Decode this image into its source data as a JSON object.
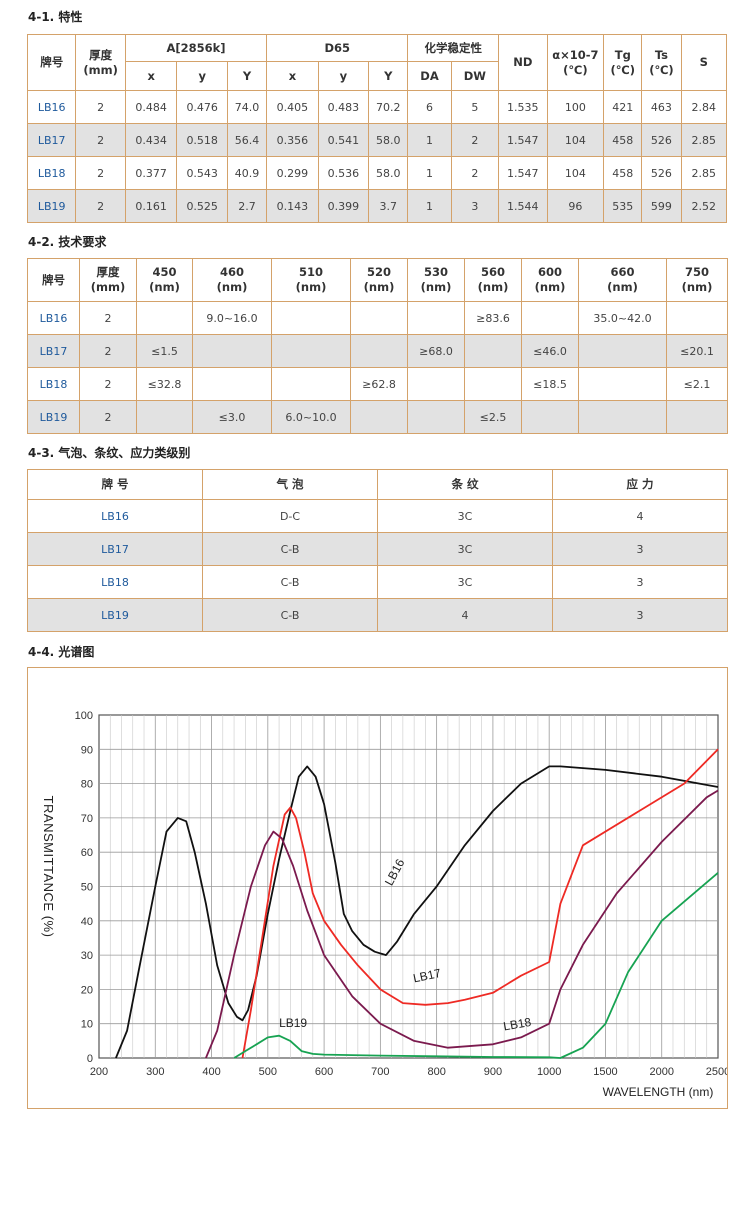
{
  "sections": {
    "s1": "4-1. 特性",
    "s2": "4-2. 技术要求",
    "s3": "4-3. 气泡、条纹、应力类级别",
    "s4": "4-4. 光谱图"
  },
  "table1": {
    "h": {
      "brand": "牌号",
      "thick": "厚度",
      "thick_unit": "(mm)",
      "a2856": "A[2856k]",
      "d65": "D65",
      "chem": "化学稳定性",
      "nd": "ND",
      "alpha": "α×10-7",
      "alpha_unit": "(℃)",
      "tg": "Tg",
      "tg_unit": "(℃)",
      "ts": "Ts",
      "ts_unit": "(℃)",
      "s": "S",
      "x": "x",
      "y": "y",
      "Y": "Y",
      "x2": "x",
      "y2": "y",
      "Y2": "Y",
      "da": "DA",
      "dw": "DW"
    },
    "rows": [
      [
        "LB16",
        "2",
        "0.484",
        "0.476",
        "74.0",
        "0.405",
        "0.483",
        "70.2",
        "6",
        "5",
        "1.535",
        "100",
        "421",
        "463",
        "2.84"
      ],
      [
        "LB17",
        "2",
        "0.434",
        "0.518",
        "56.4",
        "0.356",
        "0.541",
        "58.0",
        "1",
        "2",
        "1.547",
        "104",
        "458",
        "526",
        "2.85"
      ],
      [
        "LB18",
        "2",
        "0.377",
        "0.543",
        "40.9",
        "0.299",
        "0.536",
        "58.0",
        "1",
        "2",
        "1.547",
        "104",
        "458",
        "526",
        "2.85"
      ],
      [
        "LB19",
        "2",
        "0.161",
        "0.525",
        "2.7",
        "0.143",
        "0.399",
        "3.7",
        "1",
        "3",
        "1.544",
        "96",
        "535",
        "599",
        "2.52"
      ]
    ]
  },
  "table2": {
    "h": {
      "brand": "牌号",
      "thick": "厚度",
      "thick_unit": "(mm)",
      "unit": "(nm)",
      "w450": "450",
      "w460": "460",
      "w510": "510",
      "w520": "520",
      "w530": "530",
      "w560": "560",
      "w600": "600",
      "w660": "660",
      "w750": "750"
    },
    "rows": [
      [
        "LB16",
        "2",
        "",
        "9.0~16.0",
        "",
        "",
        "",
        "≥83.6",
        "",
        "35.0~42.0",
        ""
      ],
      [
        "LB17",
        "2",
        "≤1.5",
        "",
        "",
        "",
        "≥68.0",
        "",
        "≤46.0",
        "",
        "≤20.1"
      ],
      [
        "LB18",
        "2",
        "≤32.8",
        "",
        "",
        "≥62.8",
        "",
        "",
        "≤18.5",
        "",
        "≤2.1"
      ],
      [
        "LB19",
        "2",
        "",
        "≤3.0",
        "6.0~10.0",
        "",
        "",
        "≤2.5",
        "",
        "",
        ""
      ]
    ]
  },
  "table3": {
    "h": {
      "brand": "牌 号",
      "bubble": "气 泡",
      "stripe": "条 纹",
      "stress": "应 力"
    },
    "rows": [
      [
        "LB16",
        "D-C",
        "3C",
        "4"
      ],
      [
        "LB17",
        "C-B",
        "3C",
        "3"
      ],
      [
        "LB18",
        "C-B",
        "3C",
        "3"
      ],
      [
        "LB19",
        "C-B",
        "4",
        "3"
      ]
    ]
  },
  "chart_data": {
    "type": "line",
    "xlabel": "WAVELENGTH (nm)",
    "ylabel": "TRANSMITTANCE (%)",
    "x_ticks": [
      "200",
      "300",
      "400",
      "500",
      "600",
      "700",
      "800",
      "900",
      "1000",
      "1500",
      "2000",
      "2500"
    ],
    "x_tick_values": [
      200,
      300,
      400,
      500,
      600,
      700,
      800,
      900,
      1000,
      1500,
      2000,
      2500
    ],
    "y_ticks": [
      0,
      10,
      20,
      30,
      40,
      50,
      60,
      70,
      80,
      90,
      100
    ],
    "ylim": [
      0,
      100
    ],
    "grid": true,
    "series": [
      {
        "name": "LB16",
        "color": "#111111",
        "label_at": [
          720,
          50
        ],
        "points": [
          [
            230,
            0
          ],
          [
            250,
            8
          ],
          [
            270,
            25
          ],
          [
            300,
            50
          ],
          [
            320,
            66
          ],
          [
            340,
            70
          ],
          [
            355,
            69
          ],
          [
            370,
            60
          ],
          [
            390,
            45
          ],
          [
            410,
            27
          ],
          [
            430,
            16
          ],
          [
            445,
            12
          ],
          [
            455,
            11
          ],
          [
            465,
            14
          ],
          [
            480,
            24
          ],
          [
            500,
            42
          ],
          [
            520,
            58
          ],
          [
            540,
            72
          ],
          [
            555,
            82
          ],
          [
            570,
            85
          ],
          [
            585,
            82
          ],
          [
            600,
            74
          ],
          [
            620,
            57
          ],
          [
            635,
            42
          ],
          [
            650,
            37
          ],
          [
            670,
            33
          ],
          [
            690,
            31
          ],
          [
            710,
            30
          ],
          [
            730,
            34
          ],
          [
            760,
            42
          ],
          [
            800,
            50
          ],
          [
            850,
            62
          ],
          [
            900,
            72
          ],
          [
            950,
            80
          ],
          [
            1000,
            85
          ],
          [
            1100,
            85
          ],
          [
            1500,
            84
          ],
          [
            2000,
            82
          ],
          [
            2500,
            79
          ]
        ]
      },
      {
        "name": "LB17",
        "color": "#ee2a24",
        "label_at": [
          760,
          22
        ],
        "points": [
          [
            455,
            0
          ],
          [
            470,
            14
          ],
          [
            490,
            35
          ],
          [
            510,
            56
          ],
          [
            530,
            71
          ],
          [
            540,
            73
          ],
          [
            550,
            70
          ],
          [
            565,
            60
          ],
          [
            580,
            48
          ],
          [
            600,
            40
          ],
          [
            630,
            33
          ],
          [
            660,
            27
          ],
          [
            700,
            20
          ],
          [
            740,
            16
          ],
          [
            780,
            15.5
          ],
          [
            820,
            16
          ],
          [
            850,
            17
          ],
          [
            900,
            19
          ],
          [
            950,
            24
          ],
          [
            1000,
            28
          ],
          [
            1100,
            45
          ],
          [
            1300,
            62
          ],
          [
            1800,
            72
          ],
          [
            2200,
            80
          ],
          [
            2500,
            90
          ]
        ]
      },
      {
        "name": "LB18",
        "color": "#7b1a4e",
        "label_at": [
          920,
          8
        ],
        "points": [
          [
            390,
            0
          ],
          [
            410,
            8
          ],
          [
            440,
            30
          ],
          [
            470,
            50
          ],
          [
            495,
            62
          ],
          [
            510,
            66
          ],
          [
            525,
            64
          ],
          [
            545,
            56
          ],
          [
            570,
            43
          ],
          [
            600,
            30
          ],
          [
            650,
            18
          ],
          [
            700,
            10
          ],
          [
            760,
            5
          ],
          [
            820,
            3
          ],
          [
            900,
            4
          ],
          [
            950,
            6
          ],
          [
            1000,
            10
          ],
          [
            1100,
            20
          ],
          [
            1300,
            33
          ],
          [
            1600,
            48
          ],
          [
            2000,
            63
          ],
          [
            2400,
            76
          ],
          [
            2500,
            78
          ]
        ]
      },
      {
        "name": "LB19",
        "color": "#17a352",
        "label_at": [
          520,
          9
        ],
        "points": [
          [
            440,
            0
          ],
          [
            460,
            2
          ],
          [
            480,
            4
          ],
          [
            500,
            6
          ],
          [
            520,
            6.5
          ],
          [
            540,
            5
          ],
          [
            560,
            2
          ],
          [
            580,
            1.2
          ],
          [
            600,
            1
          ],
          [
            700,
            0.7
          ],
          [
            800,
            0.5
          ],
          [
            900,
            0.3
          ],
          [
            1000,
            0.2
          ],
          [
            1100,
            0
          ],
          [
            1300,
            3
          ],
          [
            1500,
            10
          ],
          [
            1700,
            25
          ],
          [
            2000,
            40
          ],
          [
            2500,
            54
          ]
        ]
      }
    ]
  }
}
